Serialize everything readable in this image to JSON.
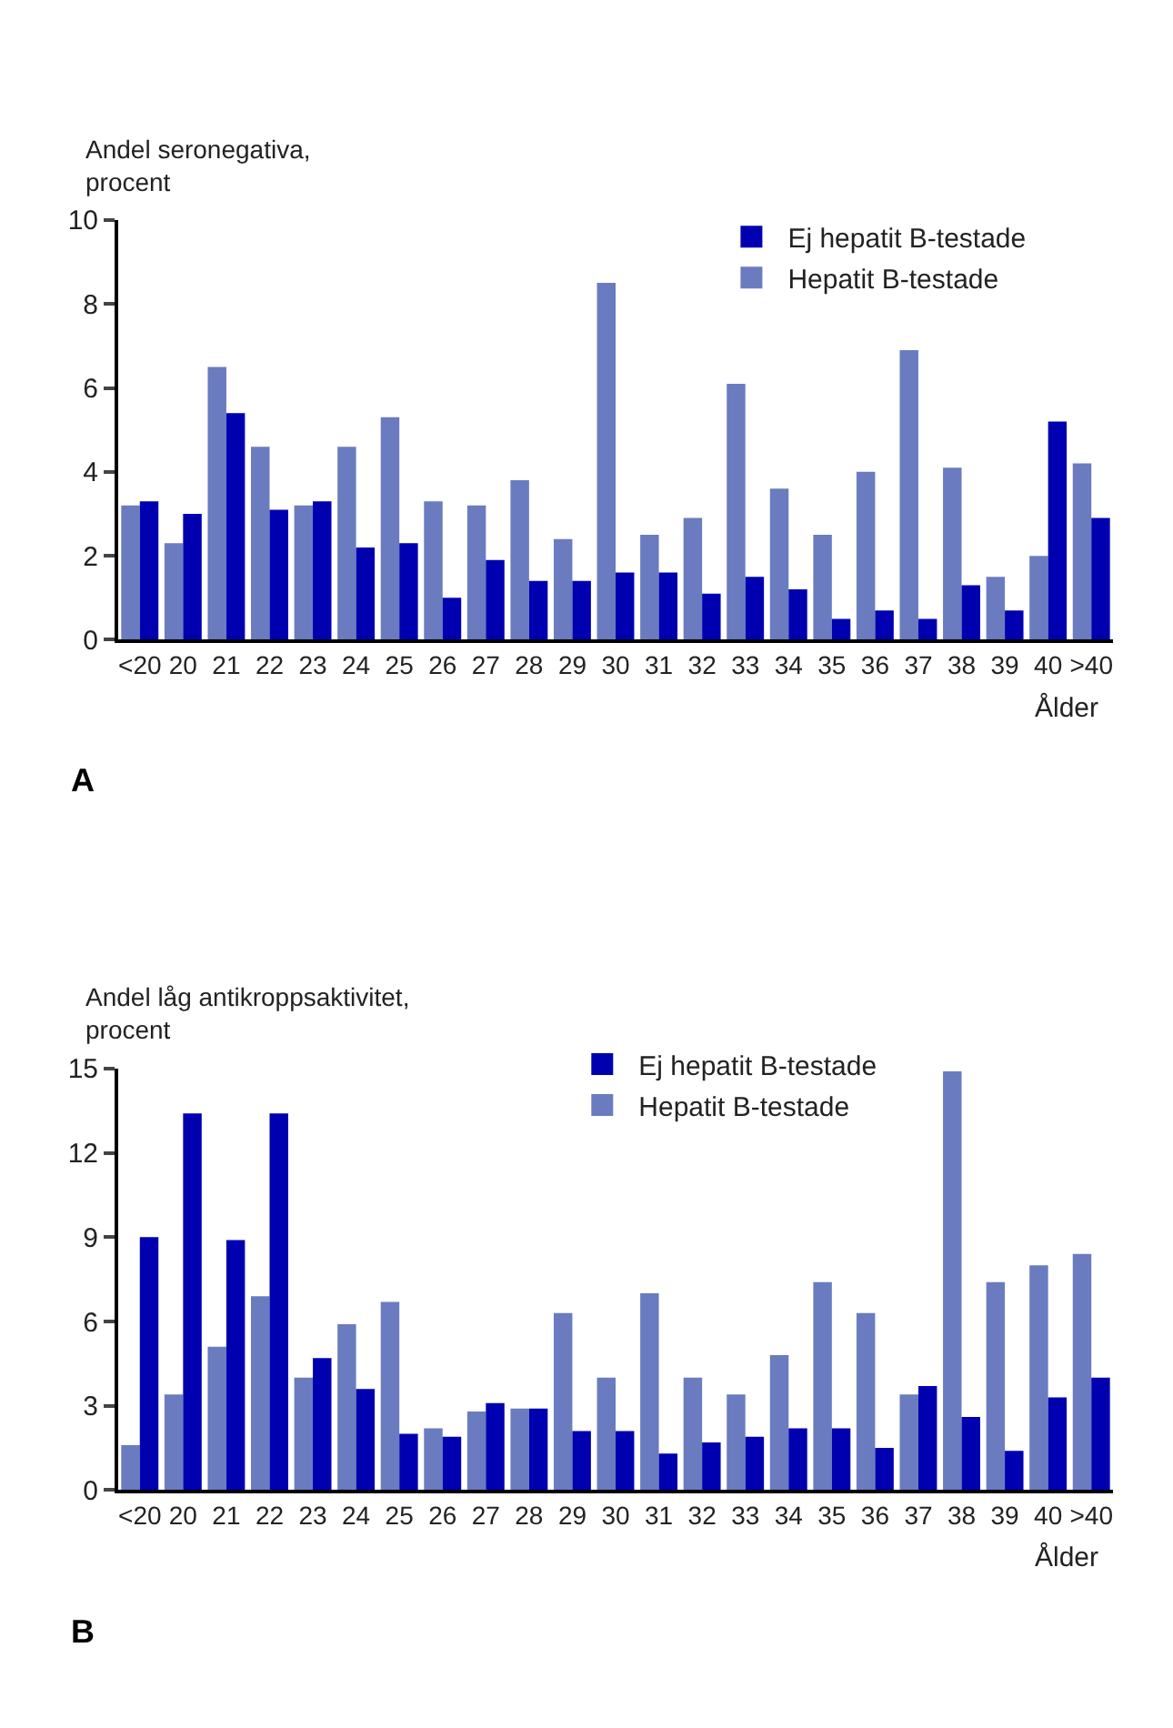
{
  "chart_data": [
    {
      "type": "bar",
      "ylabel": "Andel seronegativa,\nprocent",
      "xlabel": "Ålder",
      "annotations": [
        "A"
      ],
      "legend": "top right",
      "ylim": [
        0,
        10
      ],
      "yticks": [
        0,
        2,
        4,
        6,
        8,
        10
      ],
      "categories": [
        "<20",
        "20",
        "21",
        "22",
        "23",
        "24",
        "25",
        "26",
        "27",
        "28",
        "29",
        "30",
        "31",
        "32",
        "33",
        "34",
        "35",
        "36",
        "37",
        "38",
        "39",
        "40",
        ">40"
      ],
      "series": [
        {
          "name": "Hepatit B-testade",
          "color": "#6b7bbf",
          "values": [
            3.2,
            2.3,
            6.5,
            4.6,
            3.2,
            4.6,
            5.3,
            3.3,
            3.2,
            3.8,
            2.4,
            8.5,
            2.5,
            2.9,
            6.1,
            3.6,
            2.5,
            4.0,
            6.9,
            4.1,
            1.5,
            2.0,
            4.2
          ]
        },
        {
          "name": "Ej hepatit B-testade",
          "color": "#0000b0",
          "values": [
            3.3,
            3.0,
            5.4,
            3.1,
            3.3,
            2.2,
            2.3,
            1.0,
            1.9,
            1.4,
            1.4,
            1.6,
            1.6,
            1.1,
            1.5,
            1.2,
            0.5,
            0.7,
            0.5,
            1.3,
            0.7,
            5.2,
            2.9
          ]
        }
      ]
    },
    {
      "type": "bar",
      "ylabel": "Andel låg antikroppsaktivitet,\nprocent",
      "xlabel": "Ålder",
      "annotations": [
        "B"
      ],
      "legend": "top",
      "ylim": [
        0,
        15
      ],
      "yticks": [
        0,
        3,
        6,
        9,
        12,
        15
      ],
      "categories": [
        "<20",
        "20",
        "21",
        "22",
        "23",
        "24",
        "25",
        "26",
        "27",
        "28",
        "29",
        "30",
        "31",
        "32",
        "33",
        "34",
        "35",
        "36",
        "37",
        "38",
        "39",
        "40",
        ">40"
      ],
      "series": [
        {
          "name": "Hepatit B-testade",
          "color": "#6b7bbf",
          "values": [
            1.6,
            3.4,
            5.1,
            6.9,
            4.0,
            5.9,
            6.7,
            2.2,
            2.8,
            2.9,
            6.3,
            4.0,
            7.0,
            4.0,
            3.4,
            4.8,
            7.4,
            6.3,
            3.4,
            14.9,
            7.4,
            8.0,
            8.4
          ]
        },
        {
          "name": "Ej hepatit B-testade",
          "color": "#0000b0",
          "values": [
            9.0,
            13.4,
            8.9,
            13.4,
            4.7,
            3.6,
            2.0,
            1.9,
            3.1,
            2.9,
            2.1,
            2.1,
            1.3,
            1.7,
            1.9,
            2.2,
            2.2,
            1.5,
            3.7,
            2.6,
            1.4,
            3.3,
            4.0
          ]
        }
      ]
    }
  ]
}
